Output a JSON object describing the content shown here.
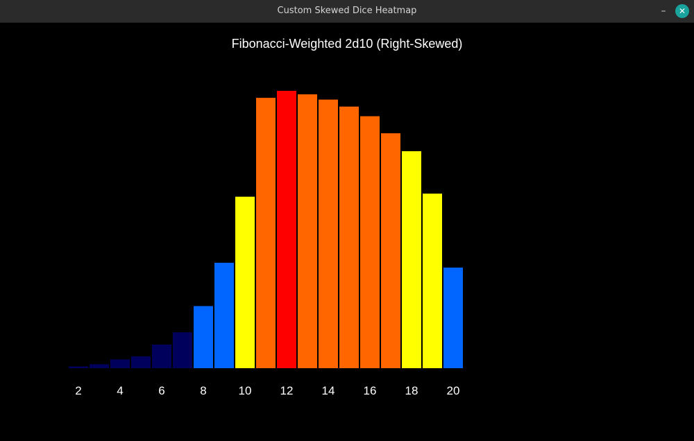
{
  "window": {
    "title": "Custom Skewed Dice Heatmap",
    "minimize_glyph": "–",
    "close_glyph": "✕"
  },
  "chart_data": {
    "type": "bar",
    "title": "Fibonacci-Weighted 2d10 (Right-Skewed)",
    "categories": [
      2,
      3,
      4,
      5,
      6,
      7,
      8,
      9,
      10,
      11,
      12,
      13,
      14,
      15,
      16,
      17,
      18,
      19,
      20
    ],
    "values": [
      0.4,
      0.9,
      2.0,
      2.7,
      5.4,
      8.2,
      14.2,
      24.1,
      39.2,
      61.8,
      63.4,
      62.6,
      61.4,
      59.8,
      57.6,
      53.7,
      49.6,
      39.9,
      23.0
    ],
    "colors": [
      "#00005c",
      "#00005c",
      "#00005c",
      "#00005c",
      "#00005c",
      "#00005c",
      "#0066ff",
      "#0066ff",
      "#ffff00",
      "#ff6600",
      "#ff0000",
      "#ff6600",
      "#ff6600",
      "#ff6600",
      "#ff6600",
      "#ff6600",
      "#ffff00",
      "#ffff00",
      "#0066ff"
    ],
    "xticks": [
      2,
      4,
      6,
      8,
      10,
      12,
      14,
      16,
      18,
      20
    ],
    "ylim": [
      0,
      63.4
    ],
    "grid": false,
    "legend": "none"
  }
}
